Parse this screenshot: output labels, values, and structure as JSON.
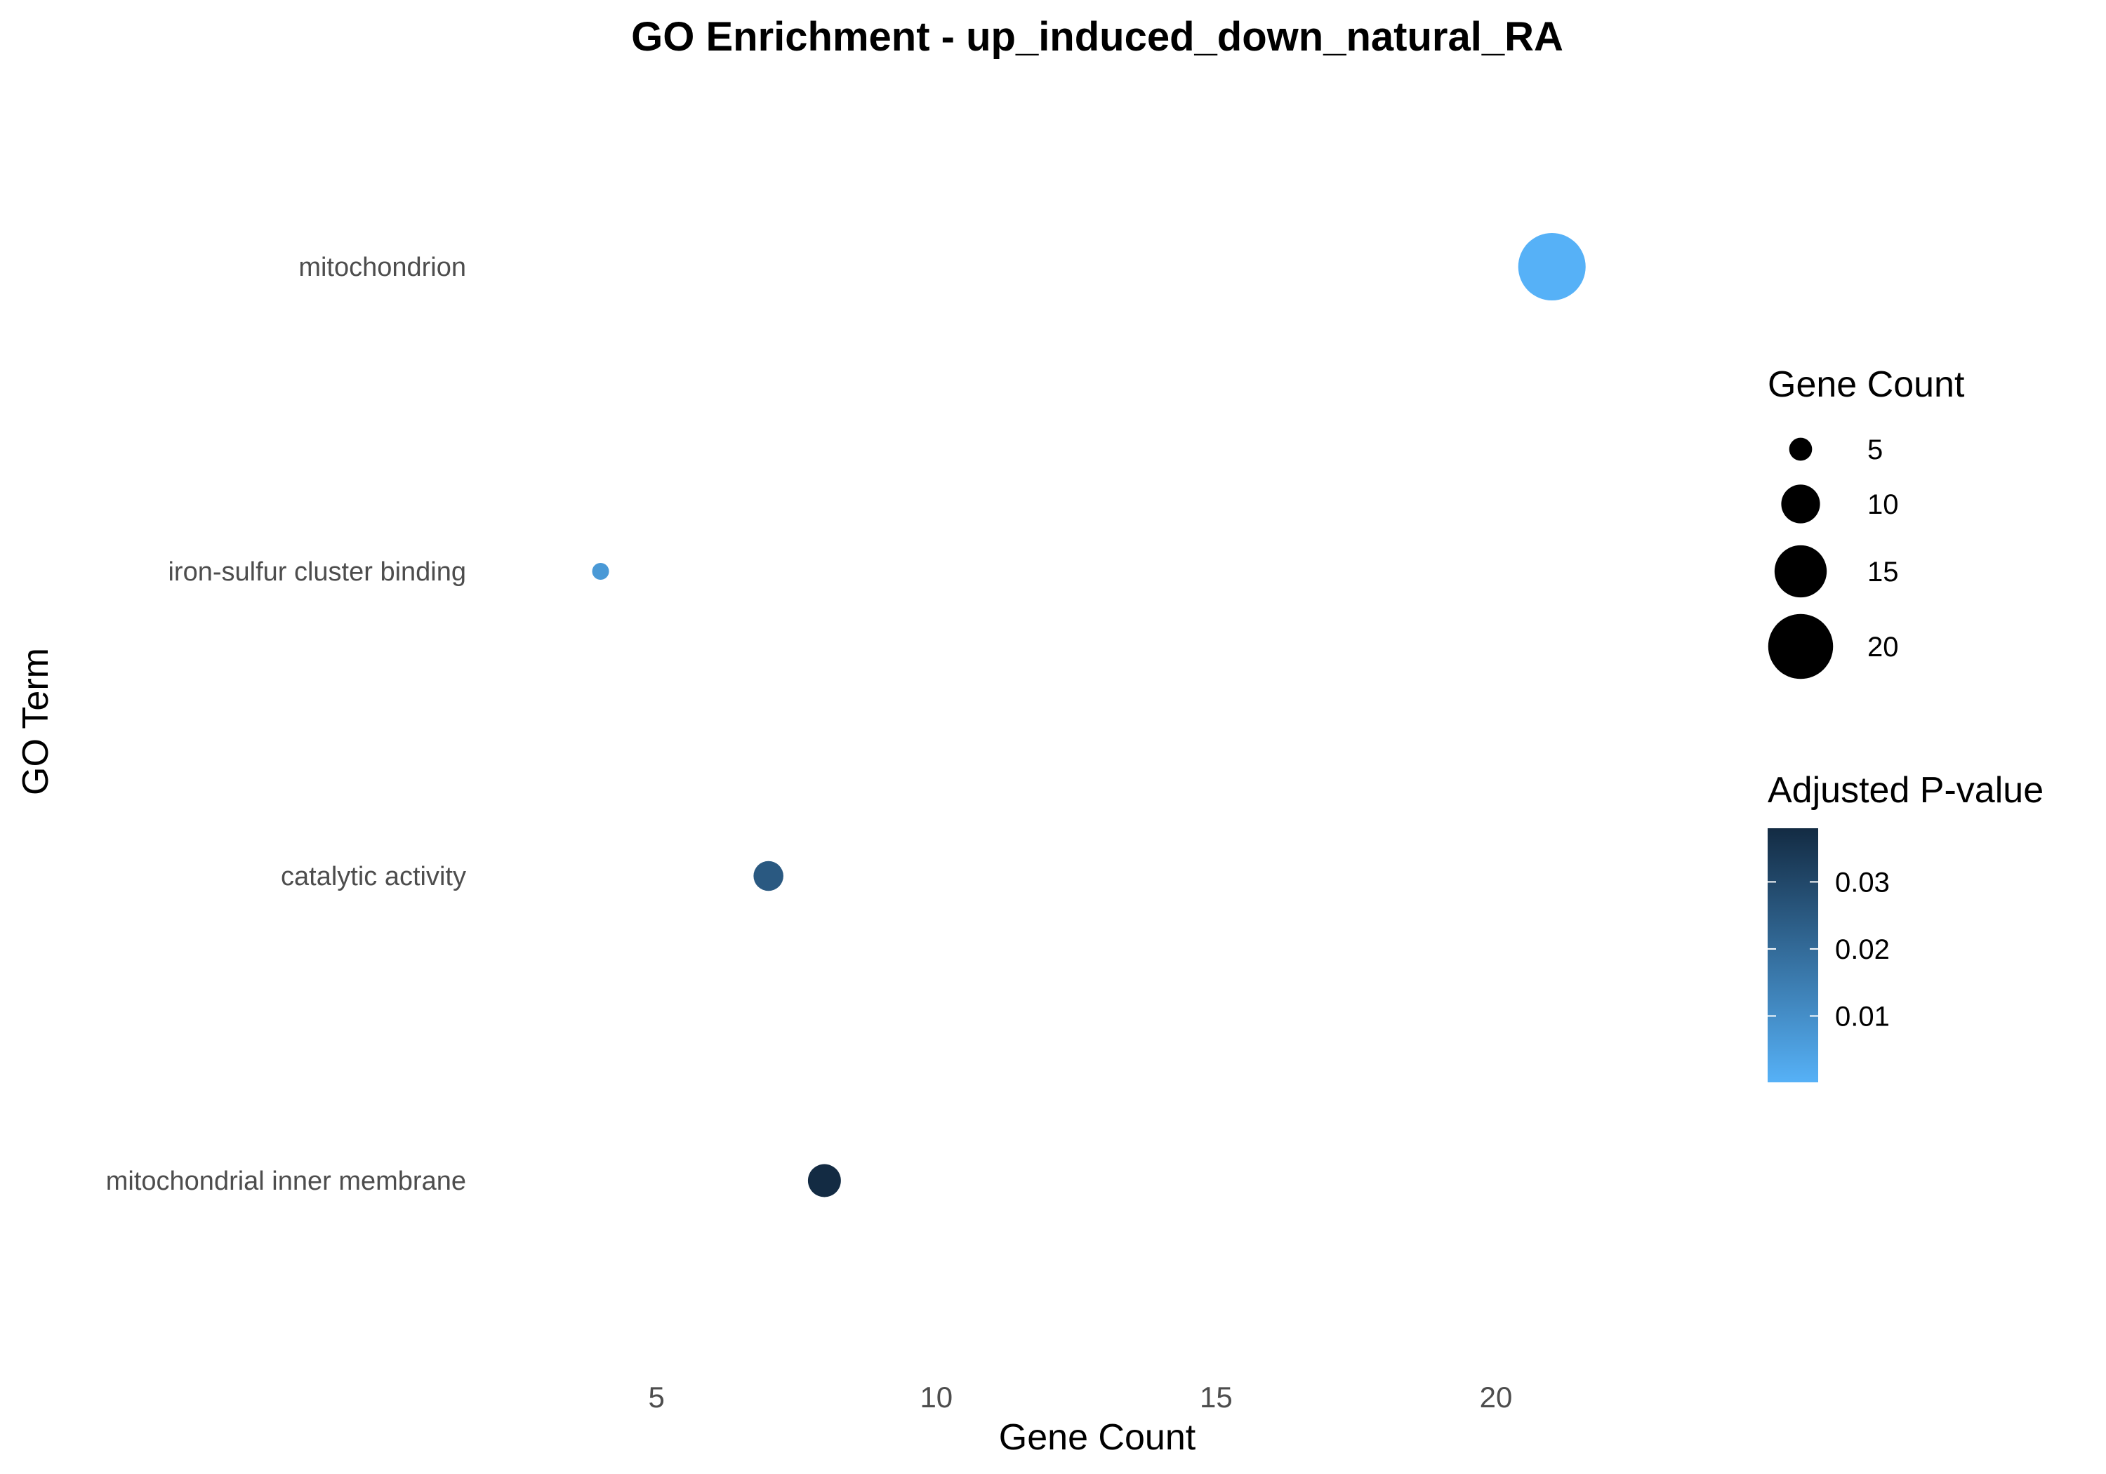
{
  "chart_data": {
    "type": "scatter",
    "title": "GO Enrichment - up_induced_down_natural_RA",
    "xlabel": "Gene Count",
    "ylabel": "GO Term",
    "xlim": [
      2.3,
      23.5
    ],
    "x_ticks": [
      "5",
      "10",
      "15",
      "20"
    ],
    "grid": false,
    "categories": [
      "mitochondrion",
      "iron-sulfur cluster binding",
      "catalytic activity",
      "mitochondrial inner membrane"
    ],
    "points": [
      {
        "term": "mitochondrion",
        "gene_count": 21,
        "p_adjust": 0.0001
      },
      {
        "term": "iron-sulfur cluster binding",
        "gene_count": 4,
        "p_adjust": 0.007
      },
      {
        "term": "catalytic activity",
        "gene_count": 7,
        "p_adjust": 0.025
      },
      {
        "term": "mitochondrial inner membrane",
        "gene_count": 8,
        "p_adjust": 0.038
      }
    ],
    "size_legend": {
      "title": "Gene Count",
      "values": [
        5,
        10,
        15,
        20
      ],
      "labels": [
        "5",
        "10",
        "15",
        "20"
      ]
    },
    "color_legend": {
      "title": "Adjusted P-value",
      "range": [
        0.0001,
        0.038
      ],
      "ticks": [
        0.01,
        0.02,
        0.03
      ],
      "tick_labels": [
        "0.01",
        "0.02",
        "0.03"
      ],
      "low_color": "#56B1F7",
      "high_color": "#132B43"
    },
    "legend_position": "right"
  }
}
